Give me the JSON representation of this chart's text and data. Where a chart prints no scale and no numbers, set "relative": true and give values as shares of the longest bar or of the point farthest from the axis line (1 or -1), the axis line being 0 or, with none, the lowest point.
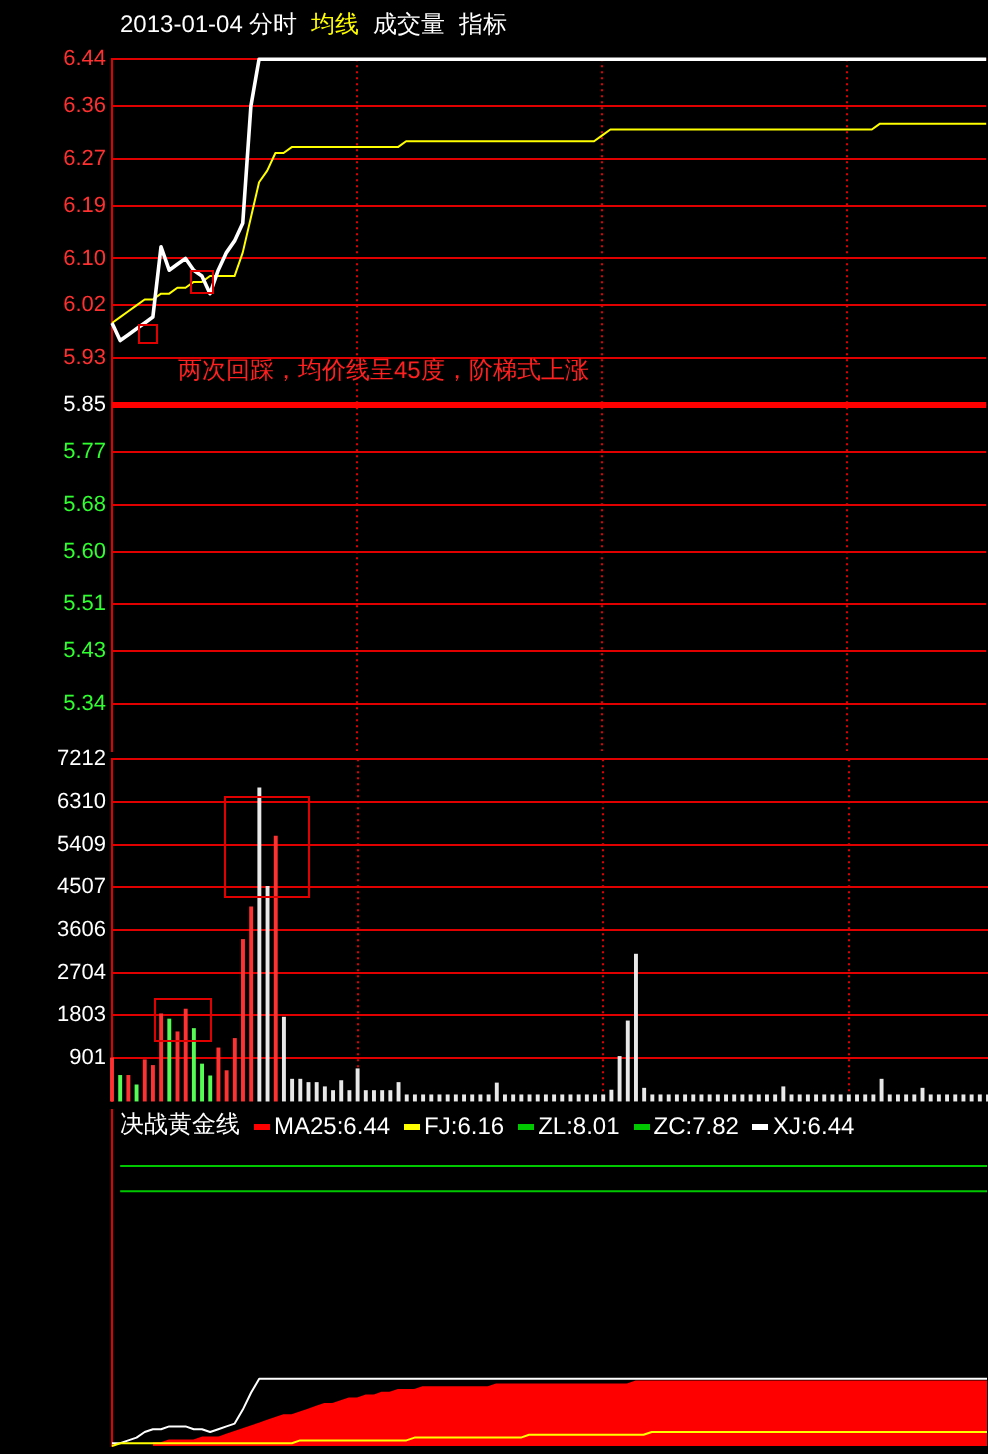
{
  "chart_data": [
    {
      "type": "line",
      "title": "2013-01-04 分时",
      "grid": true,
      "tick_labels": "y",
      "categories": [
        null,
        null,
        null,
        null,
        null,
        null,
        null,
        null,
        null,
        null,
        null,
        null,
        null,
        null,
        null,
        null,
        null,
        null,
        null,
        null,
        null,
        null,
        null,
        null,
        null,
        null,
        null,
        null,
        null,
        null,
        null,
        null,
        null,
        null,
        null,
        null,
        null,
        null,
        null,
        null,
        null,
        null,
        null,
        null,
        null,
        null,
        null,
        null,
        null,
        null,
        null,
        null,
        null,
        null,
        null,
        null,
        null,
        null,
        null,
        null,
        null,
        null,
        null,
        null,
        null,
        null,
        null,
        null,
        null,
        null,
        null,
        null,
        null,
        null,
        null,
        null,
        null,
        null,
        null,
        null,
        null,
        null,
        null,
        null,
        null,
        null,
        null,
        null,
        null,
        null,
        null,
        null,
        null,
        null,
        null,
        null,
        null,
        null,
        null,
        null,
        null,
        null,
        null,
        null,
        null,
        null,
        null,
        null
      ],
      "ylim": [
        5.26,
        6.44
      ],
      "yticks": [
        5.34,
        5.43,
        5.51,
        {
          "value": 5.6,
          "label": "5.60"
        },
        5.68,
        5.77,
        5.85,
        5.93,
        6.02,
        {
          "value": 6.1,
          "label": "6.10"
        },
        6.19,
        6.27,
        6.36,
        6.44
      ],
      "series": [
        {
          "color": "#ffffff",
          "values": [
            5.99,
            5.96,
            5.97,
            5.98,
            5.99,
            6.0,
            6.12,
            6.08,
            6.09,
            6.1,
            6.08,
            6.07,
            6.04,
            6.08,
            6.11,
            6.13,
            6.16,
            6.36,
            6.44,
            6.44,
            6.44,
            6.44,
            6.44,
            6.44,
            6.44,
            6.44,
            6.44,
            6.44,
            6.44,
            6.44,
            6.44,
            6.44,
            6.44,
            6.44,
            6.44,
            6.44,
            6.44,
            6.44,
            6.44,
            6.44,
            6.44,
            6.44,
            6.44,
            6.44,
            6.44,
            6.44,
            6.44,
            6.44,
            6.44,
            6.44,
            6.44,
            6.44,
            6.44,
            6.44,
            6.44,
            6.44,
            6.44,
            6.44,
            6.44,
            6.44,
            6.44,
            6.44,
            6.44,
            6.44,
            6.44,
            6.44,
            6.44,
            6.44,
            6.44,
            6.44,
            6.44,
            6.44,
            6.44,
            6.44,
            6.44,
            6.44,
            6.44,
            6.44,
            6.44,
            6.44,
            6.44,
            6.44,
            6.44,
            6.44,
            6.44,
            6.44,
            6.44,
            6.44,
            6.44,
            6.44,
            6.44,
            6.44,
            6.44,
            6.44,
            6.44,
            6.44,
            6.44,
            6.44,
            6.44,
            6.44,
            6.44,
            6.44,
            6.44,
            6.44,
            6.44,
            6.44,
            6.44,
            6.44
          ]
        },
        {
          "name": "均线",
          "color": "#ffff00",
          "values": [
            5.99,
            6.0,
            6.01,
            6.02,
            6.03,
            6.03,
            6.04,
            6.04,
            6.05,
            6.05,
            6.06,
            6.06,
            6.07,
            6.07,
            6.07,
            6.07,
            6.11,
            6.17,
            6.23,
            6.25,
            6.28,
            6.28,
            6.29,
            6.29,
            6.29,
            6.29,
            6.29,
            6.29,
            6.29,
            6.29,
            6.29,
            6.29,
            6.29,
            6.29,
            6.29,
            6.29,
            6.3,
            6.3,
            6.3,
            6.3,
            6.3,
            6.3,
            6.3,
            6.3,
            6.3,
            6.3,
            6.3,
            6.3,
            6.3,
            6.3,
            6.3,
            6.3,
            6.3,
            6.3,
            6.3,
            6.3,
            6.3,
            6.3,
            6.3,
            6.3,
            6.31,
            6.32,
            6.32,
            6.32,
            6.32,
            6.32,
            6.32,
            6.32,
            6.32,
            6.32,
            6.32,
            6.32,
            6.32,
            6.32,
            6.32,
            6.32,
            6.32,
            6.32,
            6.32,
            6.32,
            6.32,
            6.32,
            6.32,
            6.32,
            6.32,
            6.32,
            6.32,
            6.32,
            6.32,
            6.32,
            6.32,
            6.32,
            6.32,
            6.32,
            6.33,
            6.33,
            6.33,
            6.33,
            6.33,
            6.33,
            6.33,
            6.33,
            6.33,
            6.33,
            6.33,
            6.33,
            6.33,
            6.33
          ]
        }
      ],
      "ref_lines": [
        {
          "axis": "y",
          "value": 5.85,
          "color": "#ff0000"
        }
      ],
      "annotations": [
        "成交量",
        "指标",
        "两次回踩，均价线呈45度，阶梯式上涨"
      ]
    },
    {
      "type": "bar",
      "grid": true,
      "tick_labels": "y",
      "categories": [
        null,
        null,
        null,
        null,
        null,
        null,
        null,
        null,
        null,
        null,
        null,
        null,
        null,
        null,
        null,
        null,
        null,
        null,
        null,
        null,
        null,
        null,
        null,
        null,
        null,
        null,
        null,
        null,
        null,
        null,
        null,
        null,
        null,
        null,
        null,
        null,
        null,
        null,
        null,
        null,
        null,
        null,
        null,
        null,
        null,
        null,
        null,
        null,
        null,
        null,
        null,
        null,
        null,
        null,
        null,
        null,
        null,
        null,
        null,
        null,
        null,
        null,
        null,
        null,
        null,
        null,
        null,
        null,
        null,
        null,
        null,
        null,
        null,
        null,
        null,
        null,
        null,
        null,
        null,
        null,
        null,
        null,
        null,
        null,
        null,
        null,
        null,
        null,
        null,
        null,
        null,
        null,
        null,
        null,
        null,
        null,
        null,
        null,
        null,
        null,
        null,
        null,
        null,
        null,
        null,
        null,
        null,
        null
      ],
      "ylim": [
        0,
        7212
      ],
      "yticks": [
        901,
        1803,
        2704,
        3606,
        4507,
        5409,
        6310,
        7212
      ],
      "values": [
        900,
        530,
        530,
        330,
        860,
        740,
        1830,
        1720,
        1450,
        1930,
        1520,
        770,
        520,
        1110,
        630,
        1310,
        3400,
        4090,
        6600,
        4520,
        5580,
        1760,
        450,
        450,
        380,
        380,
        290,
        210,
        420,
        210,
        670,
        210,
        210,
        210,
        210,
        380,
        120,
        120,
        120,
        120,
        120,
        120,
        120,
        120,
        120,
        120,
        120,
        370,
        120,
        120,
        120,
        120,
        120,
        120,
        120,
        120,
        120,
        120,
        120,
        120,
        120,
        220,
        930,
        1680,
        3090,
        260,
        120,
        120,
        120,
        120,
        120,
        120,
        120,
        120,
        120,
        120,
        120,
        120,
        120,
        120,
        120,
        120,
        290,
        120,
        120,
        120,
        120,
        120,
        120,
        120,
        120,
        120,
        120,
        120,
        450,
        120,
        120,
        120,
        120,
        260,
        120,
        120,
        120,
        120,
        120,
        120,
        120,
        120
      ],
      "colors": [
        "#ff3232",
        "#54fc54",
        "#ff3232",
        "#54fc54",
        "#ff3232",
        "#ff3232",
        "#ff3232",
        "#54fc54",
        "#ff3232",
        "#ff3232",
        "#54fc54",
        "#54fc54",
        "#54fc54",
        "#ff3232",
        "#ff3232",
        "#ff3232",
        "#ff3232",
        "#ff3232",
        "#e8e8e8",
        "#e8e8e8",
        "#ff3232",
        "#e8e8e8",
        "#e8e8e8",
        "#e8e8e8",
        "#e8e8e8",
        "#e8e8e8",
        "#e8e8e8",
        "#e8e8e8",
        "#e8e8e8",
        "#e8e8e8",
        "#e8e8e8",
        "#e8e8e8",
        "#e8e8e8",
        "#e8e8e8",
        "#e8e8e8",
        "#e8e8e8",
        "#e8e8e8",
        "#e8e8e8",
        "#e8e8e8",
        "#e8e8e8",
        "#e8e8e8",
        "#e8e8e8",
        "#e8e8e8",
        "#e8e8e8",
        "#e8e8e8",
        "#e8e8e8",
        "#e8e8e8",
        "#e8e8e8",
        "#e8e8e8",
        "#e8e8e8",
        "#e8e8e8",
        "#e8e8e8",
        "#e8e8e8",
        "#e8e8e8",
        "#e8e8e8",
        "#e8e8e8",
        "#e8e8e8",
        "#e8e8e8",
        "#e8e8e8",
        "#e8e8e8",
        "#e8e8e8",
        "#e8e8e8",
        "#e8e8e8",
        "#e8e8e8",
        "#e8e8e8",
        "#e8e8e8",
        "#e8e8e8",
        "#e8e8e8",
        "#e8e8e8",
        "#e8e8e8",
        "#e8e8e8",
        "#e8e8e8",
        "#e8e8e8",
        "#e8e8e8",
        "#e8e8e8",
        "#e8e8e8",
        "#e8e8e8",
        "#e8e8e8",
        "#e8e8e8",
        "#e8e8e8",
        "#e8e8e8",
        "#e8e8e8",
        "#e8e8e8",
        "#e8e8e8",
        "#e8e8e8",
        "#e8e8e8",
        "#e8e8e8",
        "#e8e8e8",
        "#e8e8e8",
        "#e8e8e8",
        "#e8e8e8",
        "#e8e8e8",
        "#e8e8e8",
        "#e8e8e8",
        "#e8e8e8",
        "#e8e8e8",
        "#e8e8e8",
        "#e8e8e8",
        "#e8e8e8",
        "#e8e8e8",
        "#e8e8e8",
        "#e8e8e8",
        "#e8e8e8",
        "#e8e8e8",
        "#e8e8e8",
        "#e8e8e8",
        "#e8e8e8",
        "#e8e8e8"
      ]
    },
    {
      "type": "line",
      "title": "决战黄金线",
      "relative": true,
      "legend": "top",
      "tick_labels": false,
      "categories": [
        null,
        null,
        null,
        null,
        null,
        null,
        null,
        null,
        null,
        null,
        null,
        null,
        null,
        null,
        null,
        null,
        null,
        null,
        null,
        null,
        null,
        null,
        null,
        null,
        null,
        null,
        null,
        null,
        null,
        null,
        null,
        null,
        null,
        null,
        null,
        null,
        null,
        null,
        null,
        null,
        null,
        null,
        null,
        null,
        null,
        null,
        null,
        null,
        null,
        null,
        null,
        null,
        null,
        null,
        null,
        null,
        null,
        null,
        null,
        null,
        null,
        null,
        null,
        null,
        null,
        null,
        null,
        null,
        null,
        null,
        null,
        null,
        null,
        null,
        null,
        null,
        null,
        null,
        null,
        null,
        null,
        null,
        null,
        null,
        null,
        null,
        null,
        null,
        null,
        null,
        null,
        null,
        null,
        null,
        null,
        null,
        null,
        null,
        null,
        null,
        null,
        null,
        null,
        null,
        null,
        null,
        null,
        null
      ],
      "series": [
        {
          "name": "MA25:6.44",
          "type": "area",
          "color": "#ff0000",
          "values": [
            null,
            null,
            null,
            null,
            null,
            0.01,
            0.01,
            0.02,
            0.02,
            0.02,
            0.02,
            0.03,
            0.03,
            0.03,
            0.04,
            0.05,
            0.06,
            0.07,
            0.08,
            0.09,
            0.1,
            0.11,
            0.11,
            0.12,
            0.13,
            0.14,
            0.15,
            0.15,
            0.16,
            0.17,
            0.17,
            0.18,
            0.18,
            0.19,
            0.19,
            0.2,
            0.2,
            0.2,
            0.21,
            0.21,
            0.21,
            0.21,
            0.21,
            0.21,
            0.21,
            0.21,
            0.21,
            0.22,
            0.22,
            0.22,
            0.22,
            0.22,
            0.22,
            0.22,
            0.22,
            0.22,
            0.22,
            0.22,
            0.22,
            0.22,
            0.22,
            0.22,
            0.22,
            0.22,
            0.23,
            0.23,
            0.23,
            0.23,
            0.23,
            0.23,
            0.23,
            0.23,
            0.23,
            0.23,
            0.23,
            0.23,
            0.23,
            0.23,
            0.23,
            0.23,
            0.23,
            0.23,
            0.23,
            0.23,
            0.23,
            0.23,
            0.23,
            0.23,
            0.23,
            0.23,
            0.23,
            0.23,
            0.23,
            0.23,
            0.23,
            0.23,
            0.23,
            0.23,
            0.23,
            0.23,
            0.23,
            0.23,
            0.23,
            0.23,
            0.23,
            0.23,
            0.23,
            0.23
          ]
        },
        {
          "name": "FJ:6.16",
          "color": "#ffff00",
          "values": [
            0,
            0.01,
            0.01,
            0.01,
            0.01,
            0.01,
            0.01,
            0.01,
            0.01,
            0.01,
            0.01,
            0.01,
            0.01,
            0.01,
            0.01,
            0.01,
            0.01,
            0.01,
            0.01,
            0.01,
            0.01,
            0.01,
            0.01,
            0.02,
            0.02,
            0.02,
            0.02,
            0.02,
            0.02,
            0.02,
            0.02,
            0.02,
            0.02,
            0.02,
            0.02,
            0.02,
            0.02,
            0.03,
            0.03,
            0.03,
            0.03,
            0.03,
            0.03,
            0.03,
            0.03,
            0.03,
            0.03,
            0.03,
            0.03,
            0.03,
            0.03,
            0.04,
            0.04,
            0.04,
            0.04,
            0.04,
            0.04,
            0.04,
            0.04,
            0.04,
            0.04,
            0.04,
            0.04,
            0.04,
            0.04,
            0.04,
            0.05,
            0.05,
            0.05,
            0.05,
            0.05,
            0.05,
            0.05,
            0.05,
            0.05,
            0.05,
            0.05,
            0.05,
            0.05,
            0.05,
            0.05,
            0.05,
            0.05,
            0.05,
            0.05,
            0.05,
            0.05,
            0.05,
            0.05,
            0.05,
            0.05,
            0.05,
            0.05,
            0.05,
            0.05,
            0.05,
            0.05,
            0.05,
            0.05,
            0.05,
            0.05,
            0.05,
            0.05,
            0.05,
            0.05,
            0.05,
            0.05,
            0.05
          ]
        },
        {
          "name": "ZL:8.01",
          "color": "#00c800",
          "values": [
            null,
            1,
            1,
            1,
            1,
            1,
            1,
            1,
            1,
            1,
            1,
            1,
            1,
            1,
            1,
            1,
            1,
            1,
            1,
            1,
            1,
            1,
            1,
            1,
            1,
            1,
            1,
            1,
            1,
            1,
            1,
            1,
            1,
            1,
            1,
            1,
            1,
            1,
            1,
            1,
            1,
            1,
            1,
            1,
            1,
            1,
            1,
            1,
            1,
            1,
            1,
            1,
            1,
            1,
            1,
            1,
            1,
            1,
            1,
            1,
            1,
            1,
            1,
            1,
            1,
            1,
            1,
            1,
            1,
            1,
            1,
            1,
            1,
            1,
            1,
            1,
            1,
            1,
            1,
            1,
            1,
            1,
            1,
            1,
            1,
            1,
            1,
            1,
            1,
            1,
            1,
            1,
            1,
            1,
            1,
            1,
            1,
            1,
            1,
            1,
            1,
            1,
            1,
            1,
            1,
            1,
            1,
            1
          ]
        },
        {
          "name": "ZC:7.82",
          "color": "#00c800",
          "values": [
            null,
            0.91,
            0.91,
            0.91,
            0.91,
            0.91,
            0.91,
            0.91,
            0.91,
            0.91,
            0.91,
            0.91,
            0.91,
            0.91,
            0.91,
            0.91,
            0.91,
            0.91,
            0.91,
            0.91,
            0.91,
            0.91,
            0.91,
            0.91,
            0.91,
            0.91,
            0.91,
            0.91,
            0.91,
            0.91,
            0.91,
            0.91,
            0.91,
            0.91,
            0.91,
            0.91,
            0.91,
            0.91,
            0.91,
            0.91,
            0.91,
            0.91,
            0.91,
            0.91,
            0.91,
            0.91,
            0.91,
            0.91,
            0.91,
            0.91,
            0.91,
            0.91,
            0.91,
            0.91,
            0.91,
            0.91,
            0.91,
            0.91,
            0.91,
            0.91,
            0.91,
            0.91,
            0.91,
            0.91,
            0.91,
            0.91,
            0.91,
            0.91,
            0.91,
            0.91,
            0.91,
            0.91,
            0.91,
            0.91,
            0.91,
            0.91,
            0.91,
            0.91,
            0.91,
            0.91,
            0.91,
            0.91,
            0.91,
            0.91,
            0.91,
            0.91,
            0.91,
            0.91,
            0.91,
            0.91,
            0.91,
            0.91,
            0.91,
            0.91,
            0.91,
            0.91,
            0.91,
            0.91,
            0.91,
            0.91,
            0.91,
            0.91,
            0.91,
            0.91,
            0.91,
            0.91,
            0.91,
            0.91
          ]
        },
        {
          "name": "XJ:6.44",
          "color": "#ffffff",
          "values": [
            0.01,
            0.01,
            0.02,
            0.03,
            0.05,
            0.06,
            0.06,
            0.07,
            0.07,
            0.07,
            0.06,
            0.06,
            0.05,
            0.06,
            0.07,
            0.08,
            0.13,
            0.19,
            0.24,
            0.24,
            0.24,
            0.24,
            0.24,
            0.24,
            0.24,
            0.24,
            0.24,
            0.24,
            0.24,
            0.24,
            0.24,
            0.24,
            0.24,
            0.24,
            0.24,
            0.24,
            0.24,
            0.24,
            0.24,
            0.24,
            0.24,
            0.24,
            0.24,
            0.24,
            0.24,
            0.24,
            0.24,
            0.24,
            0.24,
            0.24,
            0.24,
            0.24,
            0.24,
            0.24,
            0.24,
            0.24,
            0.24,
            0.24,
            0.24,
            0.24,
            0.24,
            0.24,
            0.24,
            0.24,
            0.24,
            0.24,
            0.24,
            0.24,
            0.24,
            0.24,
            0.24,
            0.24,
            0.24,
            0.24,
            0.24,
            0.24,
            0.24,
            0.24,
            0.24,
            0.24,
            0.24,
            0.24,
            0.24,
            0.24,
            0.24,
            0.24,
            0.24,
            0.24,
            0.24,
            0.24,
            0.24,
            0.24,
            0.24,
            0.24,
            0.24,
            0.24,
            0.24,
            0.24,
            0.24,
            0.24,
            0.24,
            0.24,
            0.24,
            0.24,
            0.24,
            0.24,
            0.24,
            0.24
          ]
        }
      ]
    }
  ]
}
